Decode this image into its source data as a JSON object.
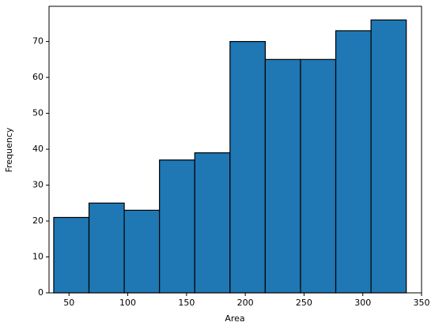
{
  "chart_data": {
    "type": "histogram",
    "x_label": "Area",
    "y_label": "Frequency",
    "bins": [
      37,
      67,
      97,
      127,
      157,
      187,
      217,
      247,
      277,
      307,
      337
    ],
    "values": [
      21,
      25,
      23,
      37,
      39,
      70,
      65,
      65,
      73,
      76
    ],
    "color": "#1f77b4",
    "xlim": [
      33,
      350
    ],
    "xticks": [
      50,
      100,
      150,
      200,
      250,
      300,
      350
    ],
    "ylim": [
      0,
      79.8
    ],
    "yticks": [
      0,
      10,
      20,
      30,
      40,
      50,
      60,
      70
    ]
  }
}
